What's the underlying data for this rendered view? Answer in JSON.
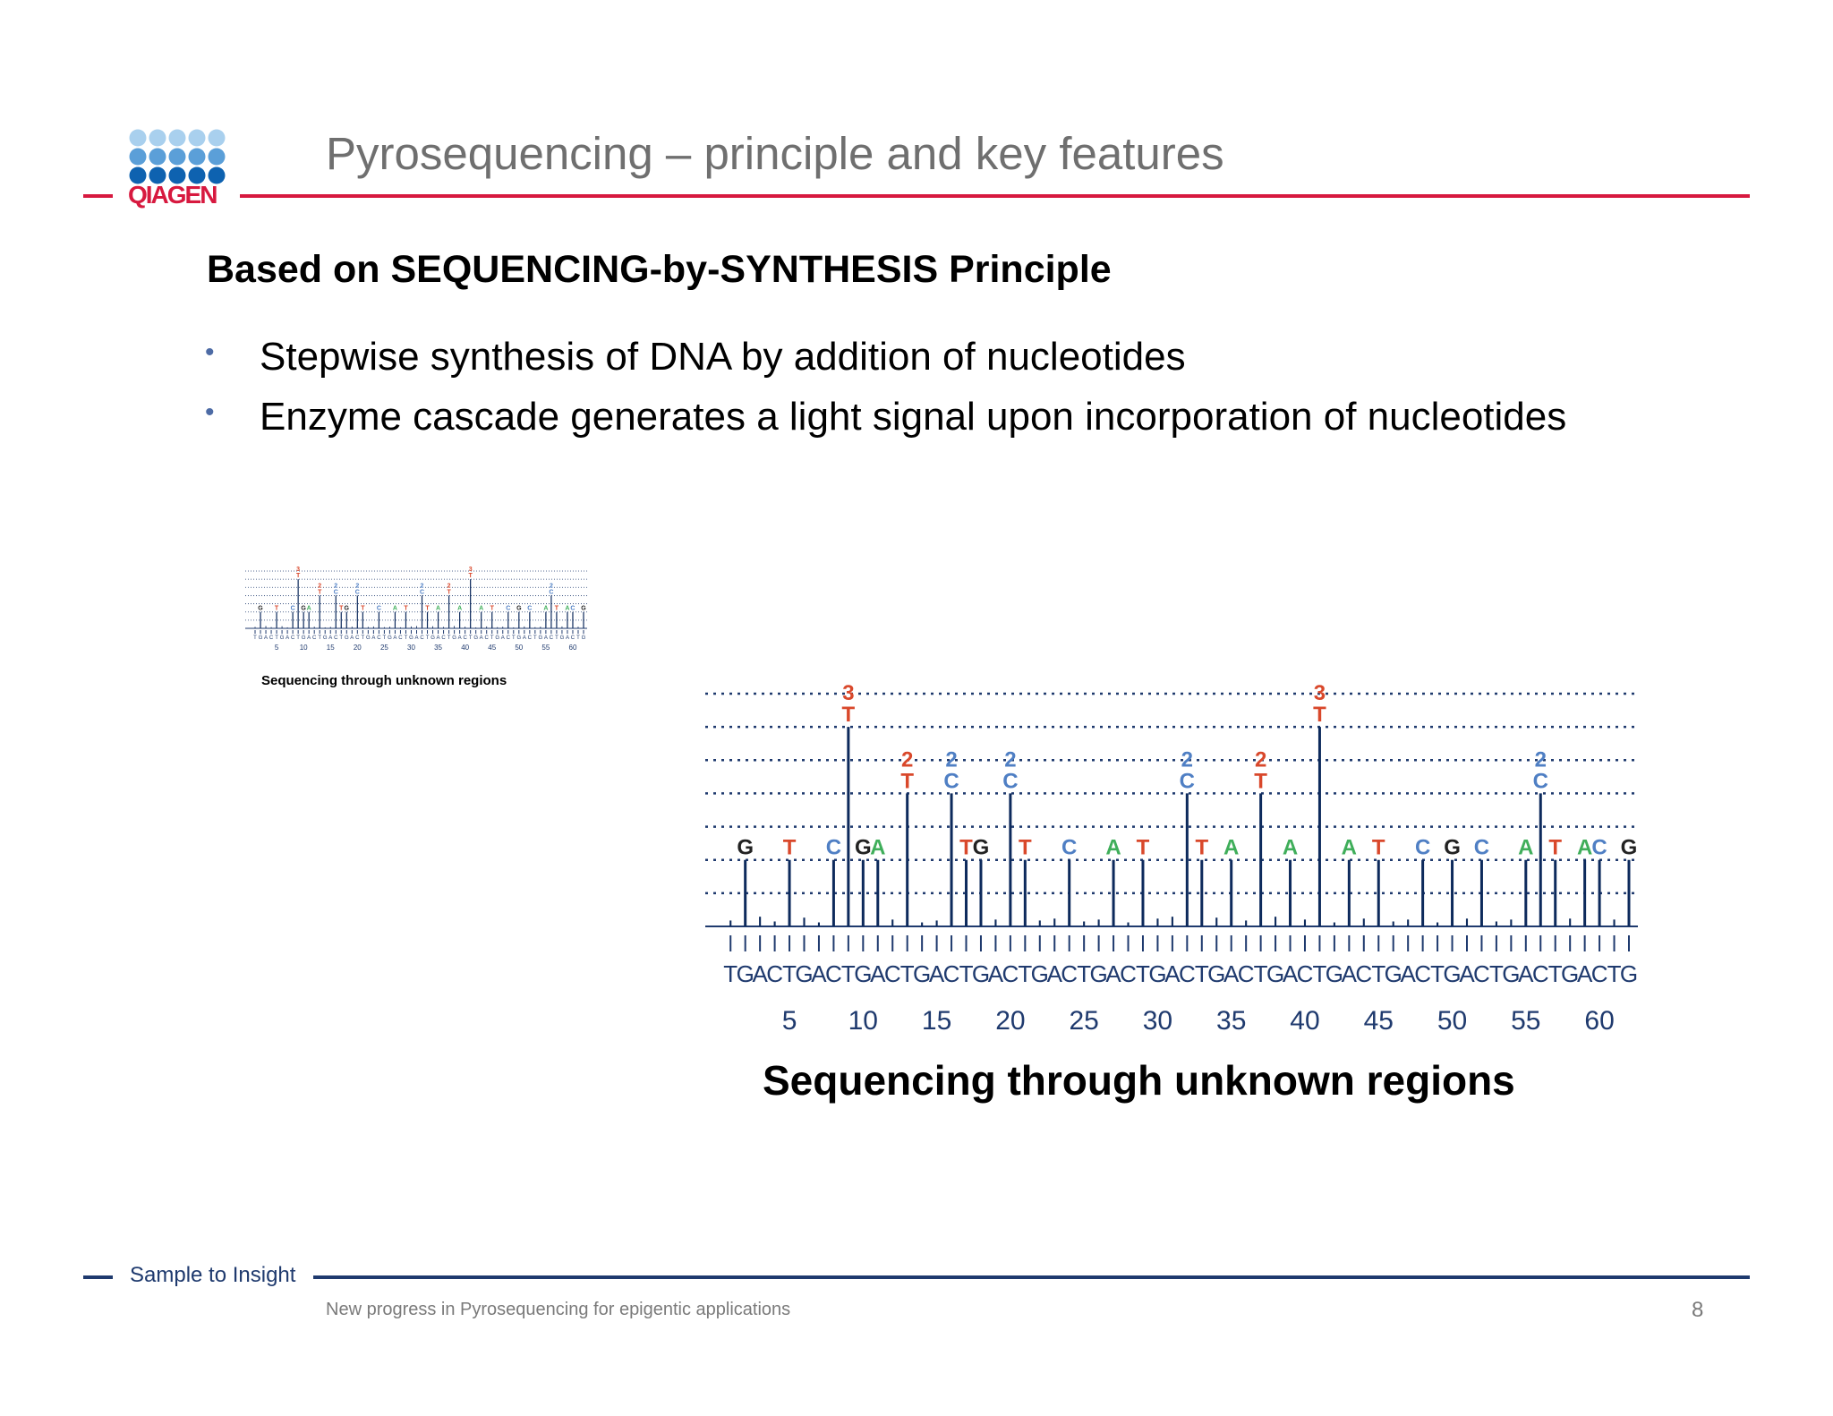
{
  "header": {
    "logo_text": "QIAGEN",
    "title": "Pyrosequencing – principle and key features"
  },
  "content": {
    "subtitle": "Based on SEQUENCING-by-SYNTHESIS Principle",
    "bullets": [
      "Stepwise synthesis of DNA by addition of nucleotides",
      "Enzyme cascade generates a light signal upon incorporation of nucleotides"
    ],
    "thumbnail_caption": "Sequencing through unknown regions",
    "figure_caption": "Sequencing through unknown regions"
  },
  "footer": {
    "tagline": "Sample to Insight",
    "note": "New progress in Pyrosequencing for epigentic applications",
    "page_number": "8"
  },
  "colors": {
    "brand_red": "#d7193f",
    "navy": "#1f3a6e",
    "base_A": "#3fae5a",
    "base_C": "#4f7fc4",
    "base_G": "#222222",
    "base_T": "#d9482b"
  },
  "chart_data": {
    "type": "bar",
    "dispensation_order": "TGACTGACTGACTGACTGACTGACTGACTGACTGACTGACTGACTGACTGACTGACTGACTG",
    "x_tick_labels": [
      "5",
      "10",
      "15",
      "20",
      "25",
      "30",
      "35",
      "40",
      "45",
      "50",
      "55",
      "60"
    ],
    "peaks": [
      {
        "x": 2,
        "base": "G",
        "height": 1
      },
      {
        "x": 5,
        "base": "T",
        "height": 1
      },
      {
        "x": 8,
        "base": "C",
        "height": 1
      },
      {
        "x": 9,
        "base": "T",
        "height": 3
      },
      {
        "x": 10,
        "base": "G",
        "height": 1
      },
      {
        "x": 11,
        "base": "A",
        "height": 1
      },
      {
        "x": 13,
        "base": "T",
        "height": 2
      },
      {
        "x": 16,
        "base": "C",
        "height": 2
      },
      {
        "x": 17,
        "base": "T",
        "height": 1
      },
      {
        "x": 18,
        "base": "G",
        "height": 1
      },
      {
        "x": 20,
        "base": "C",
        "height": 2
      },
      {
        "x": 21,
        "base": "T",
        "height": 1
      },
      {
        "x": 24,
        "base": "C",
        "height": 1
      },
      {
        "x": 27,
        "base": "A",
        "height": 1
      },
      {
        "x": 29,
        "base": "T",
        "height": 1
      },
      {
        "x": 32,
        "base": "C",
        "height": 2
      },
      {
        "x": 33,
        "base": "T",
        "height": 1
      },
      {
        "x": 35,
        "base": "A",
        "height": 1
      },
      {
        "x": 37,
        "base": "T",
        "height": 2
      },
      {
        "x": 39,
        "base": "A",
        "height": 1
      },
      {
        "x": 41,
        "base": "T",
        "height": 3
      },
      {
        "x": 43,
        "base": "A",
        "height": 1
      },
      {
        "x": 45,
        "base": "T",
        "height": 1
      },
      {
        "x": 48,
        "base": "C",
        "height": 1
      },
      {
        "x": 50,
        "base": "G",
        "height": 1
      },
      {
        "x": 52,
        "base": "C",
        "height": 1
      },
      {
        "x": 55,
        "base": "A",
        "height": 1
      },
      {
        "x": 56,
        "base": "C",
        "height": 2
      },
      {
        "x": 57,
        "base": "T",
        "height": 1
      },
      {
        "x": 59,
        "base": "A",
        "height": 1
      },
      {
        "x": 60,
        "base": "C",
        "height": 1
      },
      {
        "x": 62,
        "base": "G",
        "height": 1
      }
    ],
    "ylim": [
      0,
      3.5
    ],
    "grid": true,
    "legend": "none"
  }
}
